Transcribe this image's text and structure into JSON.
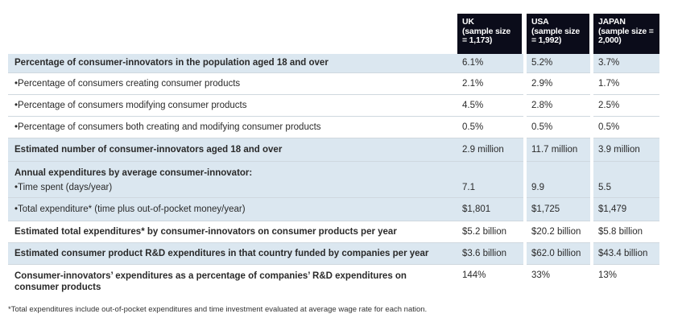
{
  "headers": [
    {
      "name": "UK",
      "sample": "(sample size = 1,173)"
    },
    {
      "name": "USA",
      "sample": "(sample size = 1,992)"
    },
    {
      "name": "JAPAN",
      "sample": "(sample size = 2,000)"
    }
  ],
  "rows": [
    {
      "label": "Percentage of consumer-innovators in the population aged 18 and over",
      "values": [
        "6.1%",
        "5.2%",
        "3.7%"
      ]
    },
    {
      "label": "•Percentage of consumers creating consumer products",
      "values": [
        "2.1%",
        "2.9%",
        "1.7%"
      ]
    },
    {
      "label": "•Percentage of consumers modifying consumer products",
      "values": [
        "4.5%",
        "2.8%",
        "2.5%"
      ]
    },
    {
      "label": "•Percentage of consumers both creating and modifying consumer products",
      "values": [
        "0.5%",
        "0.5%",
        "0.5%"
      ]
    },
    {
      "label": "Estimated number of consumer-innovators aged 18 and over",
      "values": [
        "2.9 million",
        "11.7 million",
        "3.9 million"
      ]
    },
    {
      "label": "Annual expenditures by average consumer-innovator:",
      "values": [
        "",
        "",
        ""
      ]
    },
    {
      "label": "•Time spent (days/year)",
      "values": [
        "7.1",
        "9.9",
        "5.5"
      ]
    },
    {
      "label": "•Total expenditure* (time plus out-of-pocket money/year)",
      "values": [
        "$1,801",
        "$1,725",
        "$1,479"
      ]
    },
    {
      "label": "Estimated total expenditures* by consumer-innovators on consumer products per year",
      "values": [
        "$5.2 billion",
        "$20.2 billion",
        "$5.8 billion"
      ]
    },
    {
      "label": "Estimated consumer product R&D expenditures in that country funded by companies per year",
      "values": [
        "$3.6 billion",
        "$62.0 billion",
        "$43.4 billion"
      ]
    },
    {
      "label": "Consumer-innovators’ expenditures as a percentage of companies’ R&D expenditures on consumer products",
      "values": [
        "144%",
        "33%",
        "13%"
      ]
    }
  ],
  "footnote": "*Total expenditures include out-of-pocket expenditures and time investment evaluated at average wage rate for each nation."
}
